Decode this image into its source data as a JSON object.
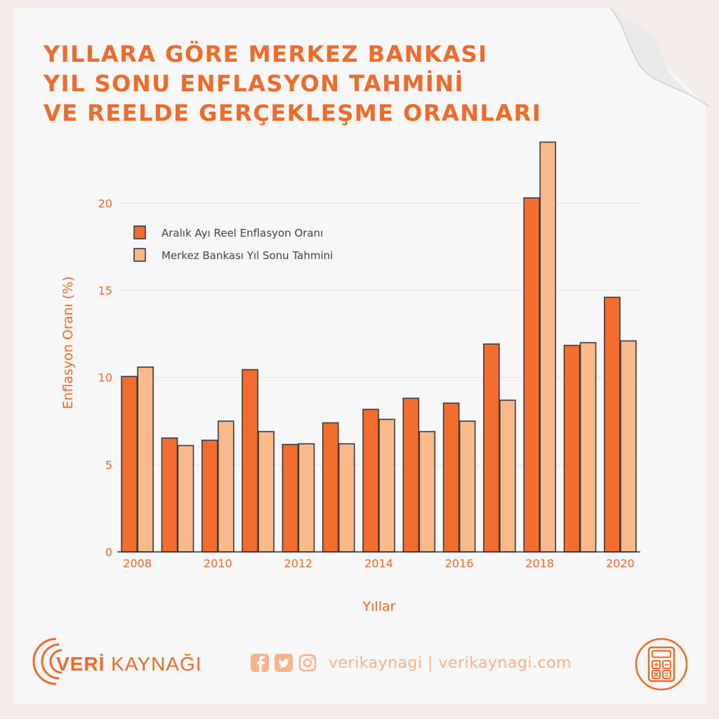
{
  "title_lines": [
    "YILLARA GÖRE MERKEZ BANKASI",
    "YIL SONU ENFLASYON TAHMİNİ",
    "VE REELDE GERÇEKLEŞME ORANLARI"
  ],
  "colors": {
    "accent": "#f06a2a",
    "real": "#f46d2e",
    "forecast": "#f9b98a",
    "bar_outline": "#3a3a3a",
    "footer_light": "#f6b48d"
  },
  "chart_data": {
    "type": "bar",
    "x": [
      2008,
      2009,
      2010,
      2011,
      2012,
      2013,
      2014,
      2015,
      2016,
      2017,
      2018,
      2019,
      2020
    ],
    "series": [
      {
        "name": "Aralık Ayı Reel Enflasyon Oranı",
        "values": [
          10.06,
          6.53,
          6.4,
          10.45,
          6.16,
          7.4,
          8.17,
          8.81,
          8.53,
          11.92,
          20.3,
          11.84,
          14.6
        ]
      },
      {
        "name": "Merkez Bankası Yıl Sonu Tahmini",
        "values": [
          10.6,
          6.1,
          7.5,
          6.9,
          6.2,
          6.2,
          7.6,
          6.9,
          7.5,
          8.7,
          23.5,
          12.0,
          12.1
        ]
      }
    ],
    "xlabel": "Yıllar",
    "ylabel": "Enflasyon Oranı (%)",
    "ylim": [
      0,
      24
    ],
    "yticks": [
      0,
      5,
      10,
      15,
      20
    ],
    "xticks": [
      2008,
      2010,
      2012,
      2014,
      2016,
      2018,
      2020
    ],
    "grid": true,
    "legend_position": "top-left"
  },
  "footer": {
    "logo_bold": "VERİ",
    "logo_rest": "KAYNAĞI",
    "social_text": "verikaynagi | verikaynagi.com",
    "icons": [
      "facebook-icon",
      "twitter-icon",
      "instagram-icon",
      "calculator-icon"
    ]
  }
}
